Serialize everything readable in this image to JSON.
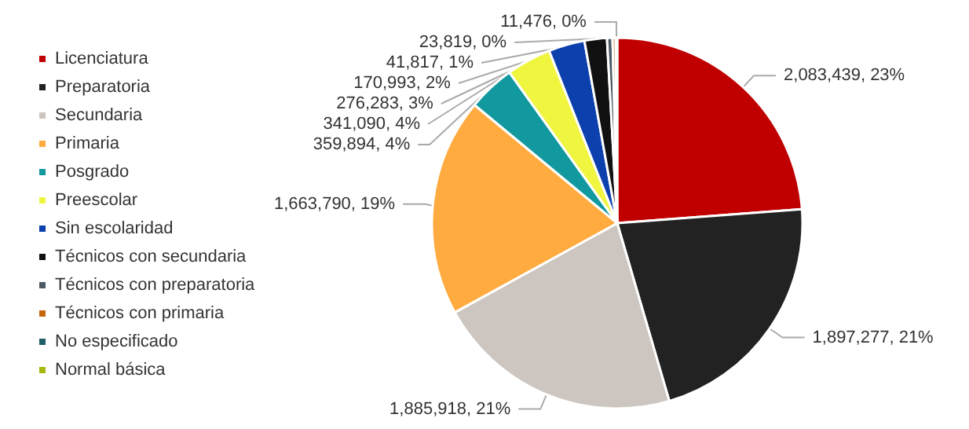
{
  "chart_data": {
    "type": "pie",
    "categories": [
      "Licenciatura",
      "Preparatoria",
      "Secundaria",
      "Primaria",
      "Posgrado",
      "Preescolar",
      "Sin escolaridad",
      "Técnicos con secundaria",
      "Técnicos con preparatoria",
      "Técnicos con primaria",
      "No especificado",
      "Normal básica"
    ],
    "values": [
      2083439,
      1897277,
      1885918,
      1663790,
      359894,
      341090,
      276283,
      170993,
      41817,
      23819,
      11476,
      null
    ],
    "value_labels": [
      "2,083,439, 23%",
      "1,897,277, 21%",
      "1,885,918, 21%",
      "1,663,790, 19%",
      "359,894, 4%",
      "341,090, 4%",
      "276,283, 3%",
      "170,993, 2%",
      "41,817, 1%",
      "23,819, 0%",
      "11,476, 0%",
      null
    ],
    "colors": [
      "#c00000",
      "#222222",
      "#cdc6c0",
      "#ffab40",
      "#12999f",
      "#f0f540",
      "#0c40ad",
      "#111111",
      "#4d5a63",
      "#c5660c",
      "#1f5e66",
      "#a6b80b"
    ],
    "legend": "left"
  }
}
